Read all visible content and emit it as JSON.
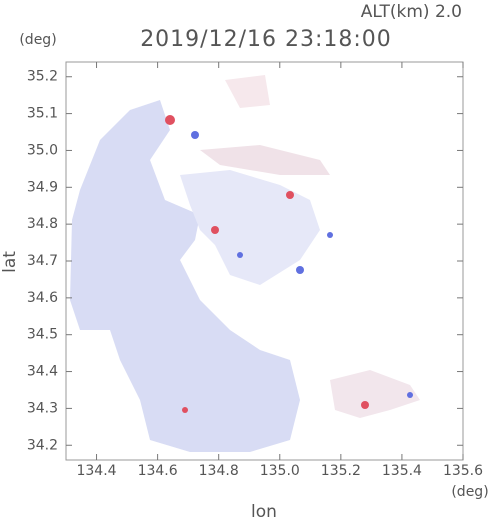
{
  "chart_data": {
    "type": "map",
    "title": "2019/12/16 23:18:00",
    "subtitle": "ALT(km)  2.0",
    "y_unit": "(deg)",
    "x_unit": "(deg)",
    "xlabel": "lon",
    "ylabel": "lat",
    "xlim": [
      134.3,
      135.6
    ],
    "ylim": [
      34.16,
      35.24
    ],
    "xticks": [
      134.4,
      134.6,
      134.8,
      {
        "value": 135,
        "label": "135.0"
      },
      135.2,
      135.4,
      135.6
    ],
    "yticks": [
      34.2,
      34.3,
      34.4,
      34.5,
      34.6,
      34.7,
      34.8,
      34.9,
      {
        "value": 35,
        "label": "35.0"
      },
      35.1,
      35.2
    ]
  }
}
